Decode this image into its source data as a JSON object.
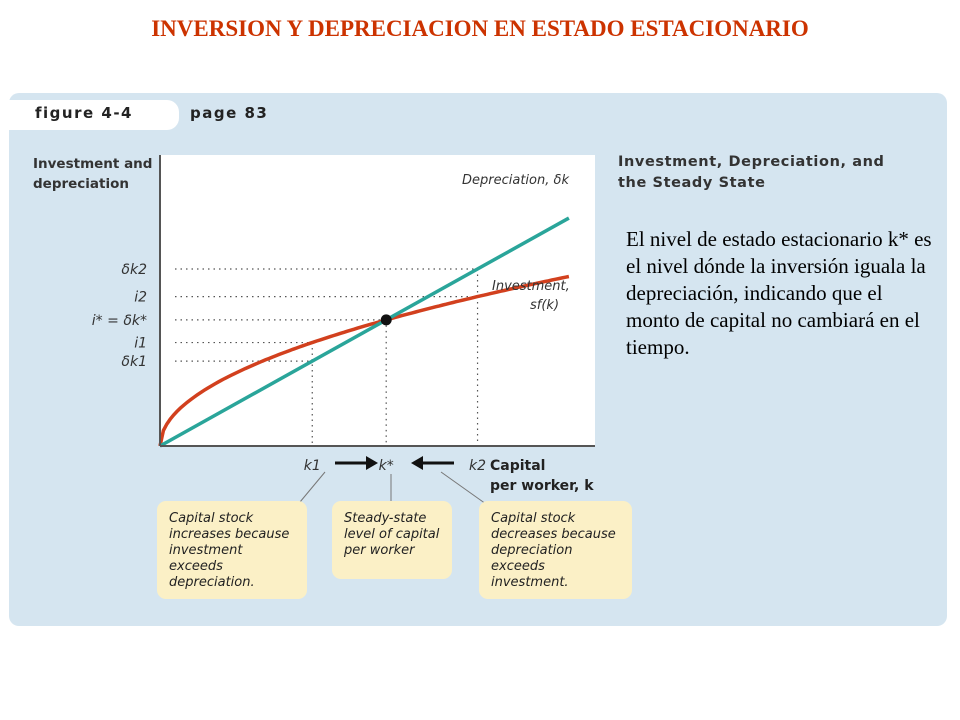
{
  "slide_title": "INVERSION Y DEPRECIACION EN ESTADO ESTACIONARIO",
  "figure": {
    "label": "figure 4-4",
    "page": "page 83",
    "heading": "Investment, Depreciation, and\nthe Steady State"
  },
  "description": "El nivel de estado estacionario k* es el nivel dónde la inversión iguala la depreciación, indicando que el monto de capital no cambiará en el tiempo.",
  "chart_data": {
    "type": "line",
    "ylabel": [
      "Investment and",
      "depreciation"
    ],
    "xlabel": [
      "Capital",
      "per worker, k"
    ],
    "x_ticks": [
      "k1",
      "k*",
      "k2"
    ],
    "y_ticks": [
      "δk2",
      "i2",
      "i* = δk*",
      "i1",
      "δk1"
    ],
    "series": [
      {
        "name": "Depreciation, δk",
        "kind": "linear",
        "color": "#2aa59a"
      },
      {
        "name": "Investment, sf(k)",
        "kind": "concave",
        "color": "#d2401e"
      }
    ],
    "points": {
      "k1": 0.35,
      "kstar": 0.52,
      "k2": 0.73
    },
    "dep_slope": 1.0,
    "inv_scale": 0.7211,
    "steady_state_marker": true,
    "xlim": [
      0,
      1
    ],
    "ylim": [
      0,
      1.2
    ]
  },
  "annotations": [
    "Capital stock increases because investment exceeds depreciation.",
    "Steady-state level of capital per worker",
    "Capital stock decreases because depreciation exceeds investment."
  ]
}
